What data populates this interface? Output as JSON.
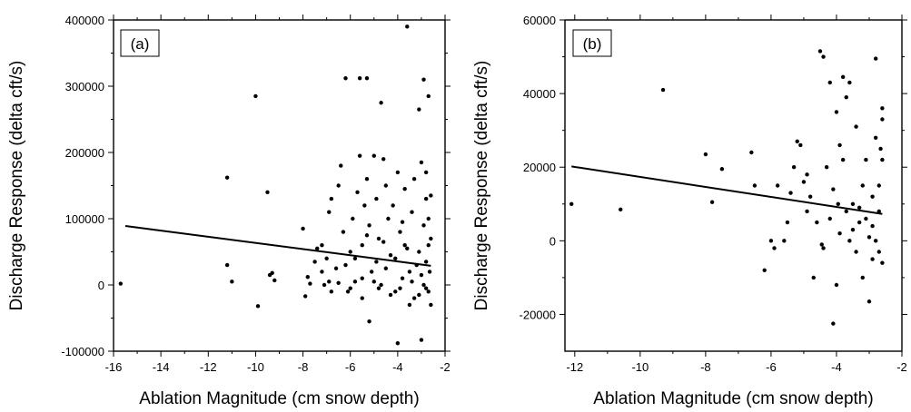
{
  "chart_data": [
    {
      "type": "scatter",
      "panel_label": "(a)",
      "xlabel": "Ablation Magnitude (cm snow depth)",
      "ylabel": "Discharge Response (delta cft/s)",
      "xlim": [
        -16,
        -2
      ],
      "ylim": [
        -100000,
        400000
      ],
      "xticks": [
        -16,
        -14,
        -12,
        -10,
        -8,
        -6,
        -4,
        -2
      ],
      "yticks": [
        -100000,
        0,
        100000,
        200000,
        300000,
        400000
      ],
      "trendline": {
        "x": [
          -15.5,
          -2.6
        ],
        "y": [
          89000,
          29000
        ]
      },
      "points": [
        [
          -15.7,
          2000
        ],
        [
          -11.2,
          162000
        ],
        [
          -11.2,
          30000
        ],
        [
          -11.0,
          5000
        ],
        [
          -10.0,
          285000
        ],
        [
          -9.9,
          -32000
        ],
        [
          -9.5,
          140000
        ],
        [
          -9.4,
          15000
        ],
        [
          -9.3,
          18000
        ],
        [
          -9.2,
          7000
        ],
        [
          -8.0,
          85000
        ],
        [
          -7.9,
          -17000
        ],
        [
          -7.8,
          12000
        ],
        [
          -7.7,
          2000
        ],
        [
          -7.5,
          35000
        ],
        [
          -7.4,
          55000
        ],
        [
          -7.2,
          60000
        ],
        [
          -7.2,
          20000
        ],
        [
          -7.1,
          0
        ],
        [
          -7.0,
          40000
        ],
        [
          -6.9,
          110000
        ],
        [
          -6.9,
          5000
        ],
        [
          -6.8,
          130000
        ],
        [
          -6.8,
          -10000
        ],
        [
          -6.6,
          25000
        ],
        [
          -6.5,
          150000
        ],
        [
          -6.5,
          3000
        ],
        [
          -6.4,
          180000
        ],
        [
          -6.3,
          80000
        ],
        [
          -6.2,
          312000
        ],
        [
          -6.2,
          30000
        ],
        [
          -6.1,
          -10000
        ],
        [
          -6.0,
          50000
        ],
        [
          -5.9,
          100000
        ],
        [
          -5.8,
          5000
        ],
        [
          -5.7,
          140000
        ],
        [
          -5.6,
          312000
        ],
        [
          -5.6,
          195000
        ],
        [
          -5.5,
          60000
        ],
        [
          -5.5,
          -20000
        ],
        [
          -5.4,
          120000
        ],
        [
          -5.3,
          312000
        ],
        [
          -5.3,
          160000
        ],
        [
          -5.2,
          90000
        ],
        [
          -5.2,
          -55000
        ],
        [
          -5.1,
          20000
        ],
        [
          -5.0,
          195000
        ],
        [
          -4.9,
          130000
        ],
        [
          -4.8,
          70000
        ],
        [
          -4.7,
          275000
        ],
        [
          -4.7,
          0
        ],
        [
          -4.6,
          190000
        ],
        [
          -4.5,
          150000
        ],
        [
          -4.4,
          100000
        ],
        [
          -4.3,
          45000
        ],
        [
          -4.2,
          120000
        ],
        [
          -4.1,
          -10000
        ],
        [
          -4.0,
          170000
        ],
        [
          -4.0,
          -88000
        ],
        [
          -3.9,
          80000
        ],
        [
          -3.8,
          10000
        ],
        [
          -3.7,
          145000
        ],
        [
          -3.6,
          390000
        ],
        [
          -3.6,
          55000
        ],
        [
          -3.5,
          -30000
        ],
        [
          -3.4,
          110000
        ],
        [
          -3.3,
          160000
        ],
        [
          -3.2,
          30000
        ],
        [
          -3.1,
          265000
        ],
        [
          -3.1,
          -15000
        ],
        [
          -3.0,
          185000
        ],
        [
          -3.0,
          -83000
        ],
        [
          -2.9,
          310000
        ],
        [
          -2.9,
          90000
        ],
        [
          -2.8,
          130000
        ],
        [
          -2.8,
          -5000
        ],
        [
          -2.7,
          285000
        ],
        [
          -2.7,
          60000
        ],
        [
          -2.65,
          20000
        ],
        [
          -2.6,
          -30000
        ],
        [
          -2.6,
          135000
        ],
        [
          -2.6,
          70000
        ],
        [
          -5.8,
          40000
        ],
        [
          -5.5,
          10000
        ],
        [
          -5.0,
          5000
        ],
        [
          -4.8,
          -5000
        ],
        [
          -4.5,
          25000
        ],
        [
          -4.3,
          -15000
        ],
        [
          -4.1,
          40000
        ],
        [
          -3.9,
          -5000
        ],
        [
          -3.7,
          60000
        ],
        [
          -3.5,
          20000
        ],
        [
          -3.3,
          -20000
        ],
        [
          -3.1,
          50000
        ],
        [
          -2.9,
          0
        ],
        [
          -2.8,
          35000
        ],
        [
          -2.7,
          -10000
        ],
        [
          -2.7,
          100000
        ],
        [
          -3.8,
          95000
        ],
        [
          -4.6,
          65000
        ],
        [
          -5.3,
          75000
        ],
        [
          -6.0,
          -5000
        ],
        [
          -3.4,
          5000
        ],
        [
          -3.0,
          15000
        ],
        [
          -2.8,
          170000
        ],
        [
          -4.9,
          35000
        ]
      ]
    },
    {
      "type": "scatter",
      "panel_label": "(b)",
      "xlabel": "Ablation Magnitude (cm snow depth)",
      "ylabel": "Discharge Response (delta cft/s)",
      "xlim": [
        -12.3,
        -2
      ],
      "ylim": [
        -30000,
        60000
      ],
      "xticks": [
        -12,
        -10,
        -8,
        -6,
        -4,
        -2
      ],
      "yticks": [
        -20000,
        0,
        20000,
        40000,
        60000
      ],
      "trendline": {
        "x": [
          -12.1,
          -2.6
        ],
        "y": [
          20200,
          7300
        ]
      },
      "points": [
        [
          -12.1,
          10000
        ],
        [
          -10.6,
          8500
        ],
        [
          -9.3,
          41000
        ],
        [
          -8.0,
          23500
        ],
        [
          -7.8,
          10500
        ],
        [
          -7.5,
          19500
        ],
        [
          -6.6,
          24000
        ],
        [
          -6.5,
          15000
        ],
        [
          -6.2,
          -8000
        ],
        [
          -6.0,
          0
        ],
        [
          -5.9,
          -2000
        ],
        [
          -5.8,
          15000
        ],
        [
          -5.6,
          0
        ],
        [
          -5.4,
          13000
        ],
        [
          -5.3,
          20000
        ],
        [
          -5.2,
          27000
        ],
        [
          -5.1,
          26000
        ],
        [
          -5.0,
          16000
        ],
        [
          -4.9,
          8000
        ],
        [
          -4.8,
          12000
        ],
        [
          -4.7,
          -10000
        ],
        [
          -4.5,
          51500
        ],
        [
          -4.4,
          50000
        ],
        [
          -4.3,
          20000
        ],
        [
          -4.2,
          43000
        ],
        [
          -4.1,
          -22500
        ],
        [
          -4.0,
          35000
        ],
        [
          -4.0,
          -12000
        ],
        [
          -3.9,
          26000
        ],
        [
          -3.8,
          44500
        ],
        [
          -3.7,
          39000
        ],
        [
          -3.6,
          43000
        ],
        [
          -3.5,
          10000
        ],
        [
          -3.4,
          31000
        ],
        [
          -3.3,
          5000
        ],
        [
          -3.2,
          -10000
        ],
        [
          -3.1,
          22000
        ],
        [
          -3.0,
          -16500
        ],
        [
          -2.9,
          12000
        ],
        [
          -2.8,
          49500
        ],
        [
          -2.8,
          28000
        ],
        [
          -2.7,
          8000
        ],
        [
          -2.6,
          36000
        ],
        [
          -2.6,
          33000
        ],
        [
          -2.6,
          22000
        ],
        [
          -2.6,
          -6000
        ],
        [
          -4.6,
          5000
        ],
        [
          -4.4,
          -2000
        ],
        [
          -4.2,
          6000
        ],
        [
          -3.9,
          2000
        ],
        [
          -3.7,
          8000
        ],
        [
          -3.5,
          3000
        ],
        [
          -3.4,
          -3000
        ],
        [
          -3.2,
          15000
        ],
        [
          -3.0,
          1000
        ],
        [
          -2.9,
          4000
        ],
        [
          -2.8,
          0
        ],
        [
          -2.7,
          -3000
        ],
        [
          -3.8,
          22000
        ],
        [
          -4.1,
          14000
        ],
        [
          -3.6,
          0
        ],
        [
          -3.3,
          9000
        ],
        [
          -2.9,
          -5000
        ],
        [
          -5.5,
          5000
        ],
        [
          -4.9,
          18000
        ],
        [
          -3.1,
          6000
        ],
        [
          -2.7,
          15000
        ],
        [
          -2.65,
          25000
        ],
        [
          -3.95,
          10000
        ],
        [
          -4.45,
          -1000
        ]
      ]
    }
  ]
}
